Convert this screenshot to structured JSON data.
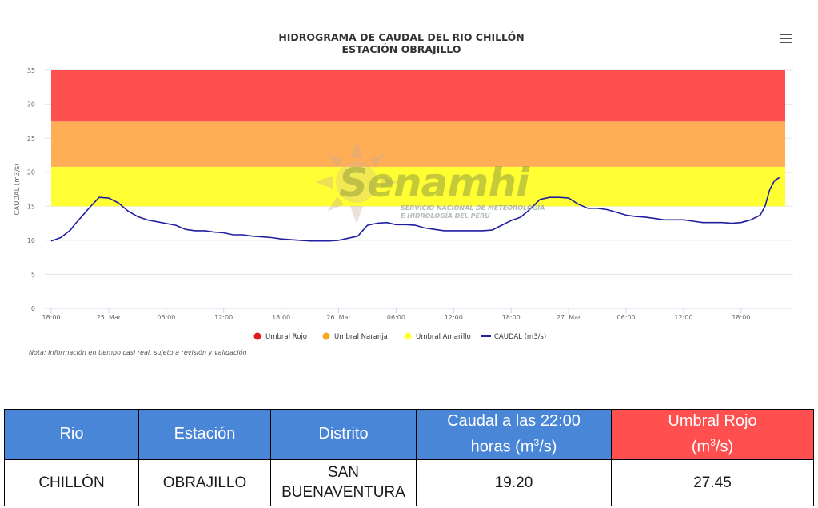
{
  "chart_data": {
    "type": "line",
    "title": "HIDROGRAMA DE CAUDAL DEL RIO CHILLÓN",
    "subtitle": "ESTACIÓN OBRAJILLO",
    "ylabel": "CAUDAL (m3/s)",
    "xlabel": "",
    "ylim": [
      0,
      35
    ],
    "y_ticks": [
      "0",
      "5",
      "10",
      "15",
      "20",
      "25",
      "30",
      "35"
    ],
    "x_start": "24 Mar 18:00",
    "x_ticks": [
      {
        "h": 0,
        "label": "18:00"
      },
      {
        "h": 6,
        "label": "25. Mar"
      },
      {
        "h": 12,
        "label": "06:00"
      },
      {
        "h": 18,
        "label": "12:00"
      },
      {
        "h": 24,
        "label": "18:00"
      },
      {
        "h": 30,
        "label": "26. Mar"
      },
      {
        "h": 36,
        "label": "06:00"
      },
      {
        "h": 42,
        "label": "12:00"
      },
      {
        "h": 48,
        "label": "18:00"
      },
      {
        "h": 54,
        "label": "27. Mar"
      },
      {
        "h": 60,
        "label": "06:00"
      },
      {
        "h": 66,
        "label": "12:00"
      },
      {
        "h": 72,
        "label": "18:00"
      }
    ],
    "bands": [
      {
        "name": "Umbral Amarillo",
        "from": 15,
        "to": 20.8,
        "color": "#ffff33"
      },
      {
        "name": "Umbral Naranja",
        "from": 20.8,
        "to": 27.45,
        "color": "#ffae55"
      },
      {
        "name": "Umbral Rojo",
        "from": 27.45,
        "to": 35,
        "color": "#ff5050"
      }
    ],
    "series": [
      {
        "name": "CAUDAL (m3/s)",
        "color": "#1f1fa0",
        "x": [
          0,
          1,
          2,
          2.5,
          3,
          4,
          5,
          6,
          7,
          8,
          9,
          10,
          13,
          14,
          15,
          16,
          17,
          18,
          19,
          20,
          21,
          22,
          23,
          24,
          26,
          27,
          28,
          28.5,
          29,
          30,
          31,
          32,
          33,
          34,
          35,
          36,
          37,
          38,
          39,
          40,
          41,
          42,
          43,
          44,
          45,
          46,
          47,
          48,
          49,
          50,
          51,
          52,
          53,
          54,
          55,
          56,
          57,
          58,
          59,
          60,
          61,
          62,
          63,
          64,
          65,
          66,
          67,
          68,
          69,
          70,
          71,
          72,
          73,
          74,
          74.5,
          75,
          75.5,
          76
        ],
        "values": [
          9.9,
          10.4,
          11.5,
          12.4,
          13.2,
          14.8,
          16.3,
          16.2,
          15.5,
          14.3,
          13.5,
          13.0,
          12.2,
          11.6,
          11.4,
          11.4,
          11.2,
          11.1,
          10.8,
          10.8,
          10.6,
          10.5,
          10.4,
          10.2,
          10.0,
          9.9,
          9.9,
          9.9,
          9.9,
          10.0,
          10.3,
          10.6,
          12.2,
          12.5,
          12.6,
          12.3,
          12.3,
          12.2,
          11.8,
          11.6,
          11.4,
          11.4,
          11.4,
          11.4,
          11.4,
          11.5,
          12.2,
          12.9,
          13.4,
          14.6,
          16.0,
          16.3,
          16.3,
          16.2,
          15.3,
          14.7,
          14.7,
          14.5,
          14.1,
          13.7,
          13.5,
          13.4,
          13.2,
          13.0,
          13.0,
          13.0,
          12.8,
          12.6,
          12.6,
          12.6,
          12.5,
          12.6,
          13.0,
          13.7,
          15.0,
          17.5,
          18.8,
          19.2
        ]
      }
    ],
    "legend": {
      "placement": "bottom",
      "items": [
        {
          "label": "Umbral Rojo",
          "color": "#e31a1c",
          "kind": "dot"
        },
        {
          "label": "Umbral Naranja",
          "color": "#f5a623",
          "kind": "dot"
        },
        {
          "label": "Umbral Amarillo",
          "color": "#ffff33",
          "kind": "dot"
        },
        {
          "label": "CAUDAL (m3/s)",
          "color": "#1f1fa0",
          "kind": "line"
        }
      ]
    },
    "grid": true
  },
  "note": "Nota: Información en tiempo casi real, sujeto a revisión y validación",
  "watermark": {
    "name": "Senamhi",
    "line1": "SERVICIO NACIONAL DE METEOROLOGIA",
    "line2": "E HIDROLOGÍA DEL PERÚ"
  },
  "menu_icon": "hamburger-menu-icon",
  "table": {
    "headers": {
      "rio": "Rio",
      "estacion": "Estación",
      "distrito": "Distrito",
      "caudal_line1": "Caudal a las 22:00",
      "caudal_line2_pre": "horas (m",
      "caudal_sup": "3",
      "caudal_line2_post": "/s)",
      "umbral_line1": "Umbral Rojo",
      "umbral_line2_pre": "(m",
      "umbral_sup": "3",
      "umbral_line2_post": "/s)"
    },
    "row": {
      "rio": "CHILLÓN",
      "estacion": "OBRAJILLO",
      "distrito_line1": "SAN",
      "distrito_line2": "BUENAVENTURA",
      "caudal": "19.20",
      "umbral": "27.45"
    },
    "header_color": "#4a86d8",
    "header_red": "#ff4f4f"
  }
}
